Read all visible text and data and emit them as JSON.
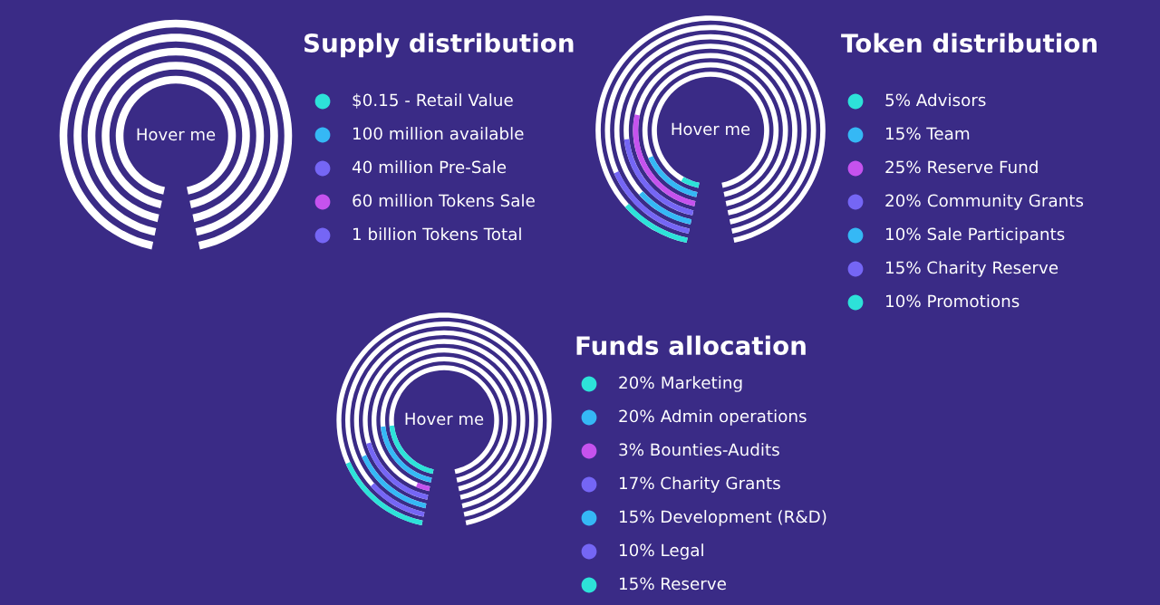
{
  "chart_data": [
    {
      "type": "other",
      "title": "Supply distribution",
      "annotations": [
        "Hover me"
      ],
      "categories": [
        "$0.15 - Retail Value",
        "100 million available",
        "40 million Pre-Sale",
        "60 million Tokens Sale",
        "1 billion Tokens Total"
      ],
      "colors": [
        "#2de2d9",
        "#35b8f5",
        "#7566f5",
        "#c552ee",
        "#7566f5"
      ]
    },
    {
      "type": "other",
      "title": "Token distribution",
      "annotations": [
        "Hover me"
      ],
      "categories": [
        "Advisors",
        "Team",
        "Reserve Fund",
        "Community Grants",
        "Sale Participants",
        "Charity Reserve",
        "Promotions"
      ],
      "values": [
        5,
        15,
        25,
        20,
        10,
        15,
        10
      ],
      "value_labels": [
        "5%",
        "15%",
        "25%",
        "20%",
        "10%",
        "15%",
        "10%"
      ],
      "colors": [
        "#2de2d9",
        "#35b8f5",
        "#c552ee",
        "#7566f5",
        "#35b8f5",
        "#7566f5",
        "#2de2d9"
      ]
    },
    {
      "type": "other",
      "title": "Funds allocation",
      "annotations": [
        "Hover me"
      ],
      "categories": [
        "Marketing",
        "Admin operations",
        "Bounties-Audits",
        "Charity Grants",
        "Development (R&D)",
        "Legal",
        "Reserve"
      ],
      "values": [
        20,
        20,
        3,
        17,
        15,
        10,
        15
      ],
      "value_labels": [
        "20%",
        "20%",
        "3%",
        "17%",
        "15%",
        "10%",
        "15%"
      ],
      "colors": [
        "#2de2d9",
        "#35b8f5",
        "#c552ee",
        "#7566f5",
        "#35b8f5",
        "#7566f5",
        "#2de2d9"
      ]
    }
  ]
}
